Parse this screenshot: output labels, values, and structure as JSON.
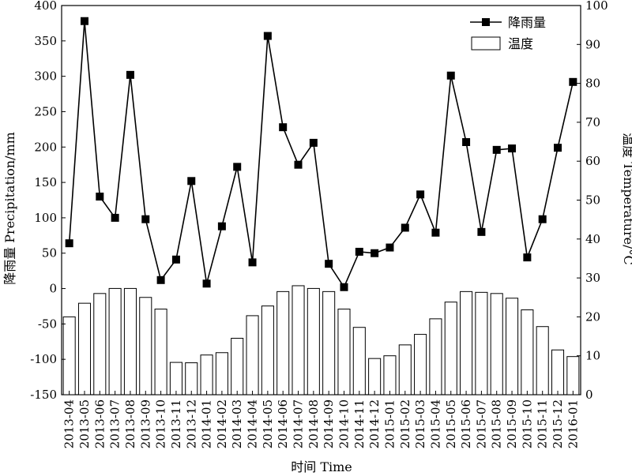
{
  "chart_data": {
    "type": "bar+line",
    "categories": [
      "2013-04",
      "2013-05",
      "2013-06",
      "2013-07",
      "2013-08",
      "2013-09",
      "2013-10",
      "2013-11",
      "2013-12",
      "2014-01",
      "2014-02",
      "2014-03",
      "2014-04",
      "2014-05",
      "2014-06",
      "2014-07",
      "2014-08",
      "2014-09",
      "2014-10",
      "2014-11",
      "2014-12",
      "2015-01",
      "2015-02",
      "2015-03",
      "2015-04",
      "2015-05",
      "2015-06",
      "2015-07",
      "2015-08",
      "2015-09",
      "2015-10",
      "2015-11",
      "2015-12",
      "2016-01"
    ],
    "series": [
      {
        "name": "降雨量",
        "type": "line",
        "axis": "left",
        "marker": "square",
        "values": [
          64,
          378,
          130,
          100,
          302,
          98,
          12,
          41,
          152,
          7,
          88,
          172,
          37,
          357,
          228,
          175,
          206,
          35,
          2,
          52,
          50,
          58,
          86,
          133,
          79,
          301,
          207,
          80,
          196,
          198,
          44,
          98,
          199,
          292
        ]
      },
      {
        "name": "温度",
        "type": "bar",
        "axis": "right",
        "values": [
          20,
          23.5,
          26,
          27.3,
          27.3,
          25,
          22,
          8.3,
          8.2,
          10.2,
          10.8,
          14.5,
          20.3,
          22.8,
          26.5,
          28,
          27.3,
          26.5,
          22,
          17.3,
          9.3,
          10,
          12.8,
          15.5,
          19.5,
          23.8,
          26.5,
          26.3,
          26,
          24.8,
          21.8,
          17.5,
          11.5,
          9.8
        ]
      }
    ],
    "xlabel": "时间 Time",
    "ylabel": "降雨量 Precipitation/mm",
    "y2label": "温度 Temperature/°C",
    "ylim": [
      -150,
      400
    ],
    "y2lim": [
      0,
      100
    ],
    "yticks": [
      -150,
      -100,
      -50,
      0,
      50,
      100,
      150,
      200,
      250,
      300,
      350,
      400
    ],
    "y2ticks": [
      0,
      10,
      20,
      30,
      40,
      50,
      60,
      70,
      80,
      90,
      100
    ],
    "grid": false,
    "legend": "top-right",
    "colors": {
      "line": "#000000",
      "marker": "#000000",
      "bar_fill": "#ffffff",
      "bar_stroke": "#000000"
    }
  }
}
